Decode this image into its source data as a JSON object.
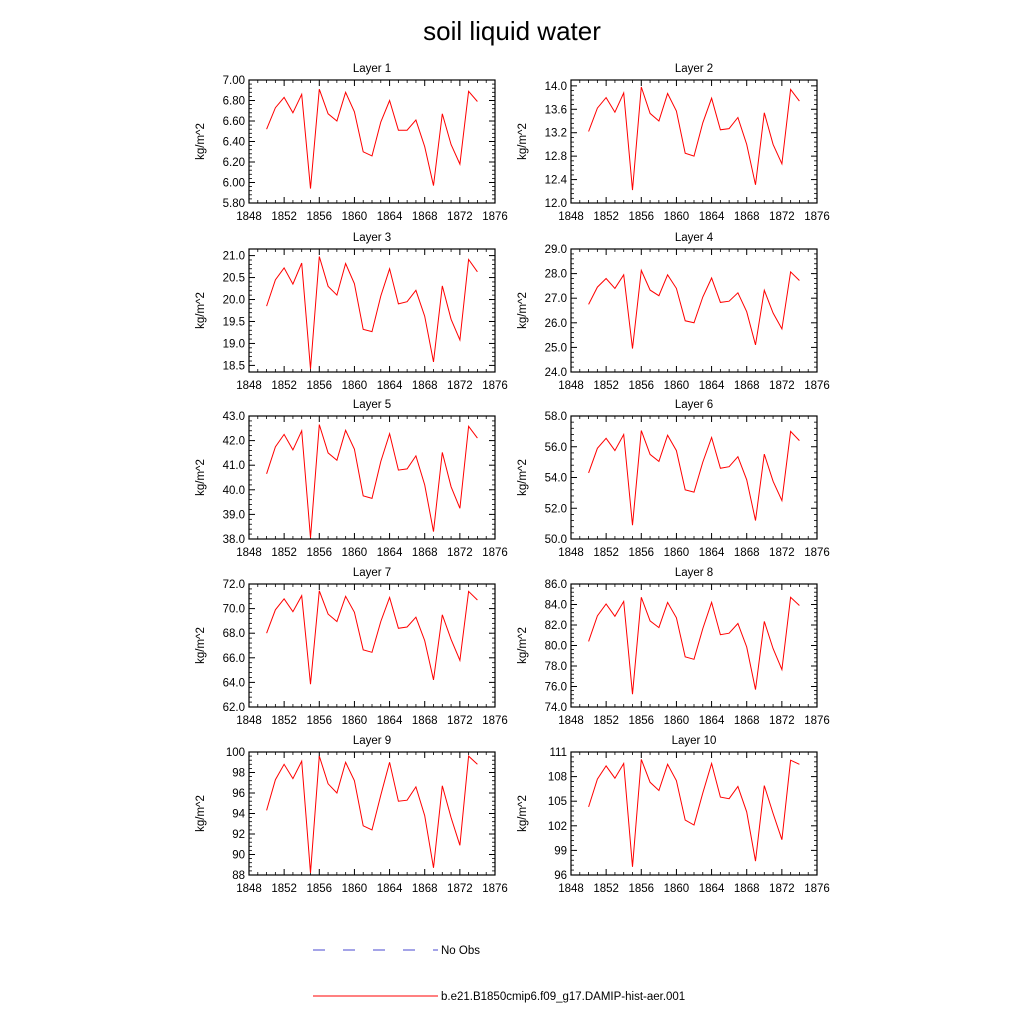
{
  "title": "soil liquid water",
  "legend": [
    {
      "label": "No Obs",
      "color": "#4a4ad0",
      "style": "dashed"
    },
    {
      "label": "b.e21.B1850cmip6.f09_g17.DAMIP-hist-aer.001",
      "color": "#ff0000",
      "style": "solid"
    }
  ],
  "chart_data": [
    {
      "type": "line",
      "title": "Layer 1",
      "xlabel": "",
      "ylabel": "kg/m^2",
      "xlim": [
        1848,
        1876
      ],
      "ylim": [
        5.8,
        7.0
      ],
      "xticks": [
        1848,
        1852,
        1856,
        1860,
        1864,
        1868,
        1872,
        1876
      ],
      "xtick_labels": [
        "1848",
        "1852",
        "1856",
        "1860",
        "1864",
        "1868",
        "1872",
        "1876"
      ],
      "yticks": [
        5.8,
        6.0,
        6.2,
        6.4,
        6.6,
        6.8,
        7.0
      ],
      "ytick_labels": [
        "5.80",
        "6.00",
        "6.20",
        "6.40",
        "6.60",
        "6.80",
        "7.00"
      ],
      "series": [
        {
          "color": "#ff0000",
          "x": [
            1850,
            1851,
            1852,
            1853,
            1854,
            1855,
            1856,
            1857,
            1858,
            1859,
            1860,
            1861,
            1862,
            1863,
            1864,
            1865,
            1866,
            1867,
            1868,
            1869,
            1870,
            1871,
            1872,
            1873,
            1874
          ],
          "values": [
            6.52,
            6.73,
            6.83,
            6.68,
            6.86,
            5.94,
            6.91,
            6.67,
            6.6,
            6.88,
            6.69,
            6.3,
            6.26,
            6.59,
            6.8,
            6.51,
            6.51,
            6.61,
            6.35,
            5.97,
            6.67,
            6.37,
            6.18,
            6.89,
            6.79
          ]
        }
      ]
    },
    {
      "type": "line",
      "title": "Layer 2",
      "xlabel": "",
      "ylabel": "kg/m^2",
      "xlim": [
        1848,
        1876
      ],
      "ylim": [
        12.0,
        14.1
      ],
      "xticks": [
        1848,
        1852,
        1856,
        1860,
        1864,
        1868,
        1872,
        1876
      ],
      "xtick_labels": [
        "1848",
        "1852",
        "1856",
        "1860",
        "1864",
        "1868",
        "1872",
        "1876"
      ],
      "yticks": [
        12.0,
        12.4,
        12.8,
        13.2,
        13.6,
        14.0
      ],
      "ytick_labels": [
        "12.0",
        "12.4",
        "12.8",
        "13.2",
        "13.6",
        "14.0"
      ],
      "series": [
        {
          "color": "#ff0000",
          "x": [
            1850,
            1851,
            1852,
            1853,
            1854,
            1855,
            1856,
            1857,
            1858,
            1859,
            1860,
            1861,
            1862,
            1863,
            1864,
            1865,
            1866,
            1867,
            1868,
            1869,
            1870,
            1871,
            1872,
            1873,
            1874
          ],
          "values": [
            13.22,
            13.62,
            13.8,
            13.55,
            13.88,
            12.22,
            13.98,
            13.53,
            13.4,
            13.87,
            13.57,
            12.85,
            12.8,
            13.37,
            13.79,
            13.25,
            13.27,
            13.46,
            13.0,
            12.31,
            13.54,
            13.0,
            12.67,
            13.94,
            13.74
          ]
        }
      ]
    },
    {
      "type": "line",
      "title": "Layer 3",
      "xlabel": "",
      "ylabel": "kg/m^2",
      "xlim": [
        1848,
        1876
      ],
      "ylim": [
        18.35,
        21.15
      ],
      "xticks": [
        1848,
        1852,
        1856,
        1860,
        1864,
        1868,
        1872,
        1876
      ],
      "xtick_labels": [
        "1848",
        "1852",
        "1856",
        "1860",
        "1864",
        "1868",
        "1872",
        "1876"
      ],
      "yticks": [
        18.5,
        19.0,
        19.5,
        20.0,
        20.5,
        21.0
      ],
      "ytick_labels": [
        "18.5",
        "19.0",
        "19.5",
        "20.0",
        "20.5",
        "21.0"
      ],
      "series": [
        {
          "color": "#ff0000",
          "x": [
            1850,
            1851,
            1852,
            1853,
            1854,
            1855,
            1856,
            1857,
            1858,
            1859,
            1860,
            1861,
            1862,
            1863,
            1864,
            1865,
            1866,
            1867,
            1868,
            1869,
            1870,
            1871,
            1872,
            1873,
            1874
          ],
          "values": [
            19.85,
            20.45,
            20.72,
            20.35,
            20.83,
            18.42,
            20.98,
            20.3,
            20.1,
            20.82,
            20.36,
            19.32,
            19.27,
            20.08,
            20.7,
            19.9,
            19.95,
            20.21,
            19.62,
            18.58,
            20.31,
            19.55,
            19.08,
            20.91,
            20.63
          ]
        }
      ]
    },
    {
      "type": "line",
      "title": "Layer 4",
      "xlabel": "",
      "ylabel": "kg/m^2",
      "xlim": [
        1848,
        1876
      ],
      "ylim": [
        24.0,
        29.0
      ],
      "xticks": [
        1848,
        1852,
        1856,
        1860,
        1864,
        1868,
        1872,
        1876
      ],
      "xtick_labels": [
        "1848",
        "1852",
        "1856",
        "1860",
        "1864",
        "1868",
        "1872",
        "1876"
      ],
      "yticks": [
        24.0,
        25.0,
        26.0,
        27.0,
        28.0,
        29.0
      ],
      "ytick_labels": [
        "24.0",
        "25.0",
        "26.0",
        "27.0",
        "28.0",
        "29.0"
      ],
      "series": [
        {
          "color": "#ff0000",
          "x": [
            1850,
            1851,
            1852,
            1853,
            1854,
            1855,
            1856,
            1857,
            1858,
            1859,
            1860,
            1861,
            1862,
            1863,
            1864,
            1865,
            1866,
            1867,
            1868,
            1869,
            1870,
            1871,
            1872,
            1873,
            1874
          ],
          "values": [
            26.75,
            27.45,
            27.8,
            27.4,
            27.95,
            24.95,
            28.13,
            27.33,
            27.1,
            27.95,
            27.4,
            26.08,
            26.0,
            27.05,
            27.82,
            26.83,
            26.88,
            27.22,
            26.45,
            25.1,
            27.32,
            26.4,
            25.75,
            28.07,
            27.72
          ]
        }
      ]
    },
    {
      "type": "line",
      "title": "Layer 5",
      "xlabel": "",
      "ylabel": "kg/m^2",
      "xlim": [
        1848,
        1876
      ],
      "ylim": [
        38.0,
        43.0
      ],
      "xticks": [
        1848,
        1852,
        1856,
        1860,
        1864,
        1868,
        1872,
        1876
      ],
      "xtick_labels": [
        "1848",
        "1852",
        "1856",
        "1860",
        "1864",
        "1868",
        "1872",
        "1876"
      ],
      "yticks": [
        38.0,
        39.0,
        40.0,
        41.0,
        42.0,
        43.0
      ],
      "ytick_labels": [
        "38.0",
        "39.0",
        "40.0",
        "41.0",
        "42.0",
        "43.0"
      ],
      "series": [
        {
          "color": "#ff0000",
          "x": [
            1850,
            1851,
            1852,
            1853,
            1854,
            1855,
            1856,
            1857,
            1858,
            1859,
            1860,
            1861,
            1862,
            1863,
            1864,
            1865,
            1866,
            1867,
            1868,
            1869,
            1870,
            1871,
            1872,
            1873,
            1874
          ],
          "values": [
            40.65,
            41.75,
            42.25,
            41.62,
            42.4,
            38.05,
            42.65,
            41.5,
            41.2,
            42.42,
            41.65,
            39.75,
            39.65,
            41.15,
            42.28,
            40.8,
            40.85,
            41.38,
            40.2,
            38.3,
            41.52,
            40.12,
            39.25,
            42.58,
            42.1
          ]
        }
      ]
    },
    {
      "type": "line",
      "title": "Layer 6",
      "xlabel": "",
      "ylabel": "kg/m^2",
      "xlim": [
        1848,
        1876
      ],
      "ylim": [
        50.0,
        58.0
      ],
      "xticks": [
        1848,
        1852,
        1856,
        1860,
        1864,
        1868,
        1872,
        1876
      ],
      "xtick_labels": [
        "1848",
        "1852",
        "1856",
        "1860",
        "1864",
        "1868",
        "1872",
        "1876"
      ],
      "yticks": [
        50.0,
        52.0,
        54.0,
        56.0,
        58.0
      ],
      "ytick_labels": [
        "50.0",
        "52.0",
        "54.0",
        "56.0",
        "58.0"
      ],
      "series": [
        {
          "color": "#ff0000",
          "x": [
            1850,
            1851,
            1852,
            1853,
            1854,
            1855,
            1856,
            1857,
            1858,
            1859,
            1860,
            1861,
            1862,
            1863,
            1864,
            1865,
            1866,
            1867,
            1868,
            1869,
            1870,
            1871,
            1872,
            1873,
            1874
          ],
          "values": [
            54.3,
            55.9,
            56.55,
            55.75,
            56.8,
            50.9,
            57.05,
            55.5,
            55.05,
            56.75,
            55.75,
            53.2,
            53.05,
            55.0,
            56.6,
            54.6,
            54.7,
            55.35,
            53.85,
            51.2,
            55.52,
            53.75,
            52.5,
            57.0,
            56.4
          ]
        }
      ]
    },
    {
      "type": "line",
      "title": "Layer 7",
      "xlabel": "",
      "ylabel": "kg/m^2",
      "xlim": [
        1848,
        1876
      ],
      "ylim": [
        62.0,
        72.0
      ],
      "xticks": [
        1848,
        1852,
        1856,
        1860,
        1864,
        1868,
        1872,
        1876
      ],
      "xtick_labels": [
        "1848",
        "1852",
        "1856",
        "1860",
        "1864",
        "1868",
        "1872",
        "1876"
      ],
      "yticks": [
        62.0,
        64.0,
        66.0,
        68.0,
        70.0,
        72.0
      ],
      "ytick_labels": [
        "62.0",
        "64.0",
        "66.0",
        "68.0",
        "70.0",
        "72.0"
      ],
      "series": [
        {
          "color": "#ff0000",
          "x": [
            1850,
            1851,
            1852,
            1853,
            1854,
            1855,
            1856,
            1857,
            1858,
            1859,
            1860,
            1861,
            1862,
            1863,
            1864,
            1865,
            1866,
            1867,
            1868,
            1869,
            1870,
            1871,
            1872,
            1873,
            1874
          ],
          "values": [
            68.0,
            69.9,
            70.8,
            69.75,
            71.05,
            63.85,
            71.45,
            69.55,
            68.95,
            71.0,
            69.7,
            66.65,
            66.45,
            68.95,
            70.9,
            68.4,
            68.5,
            69.3,
            67.4,
            64.2,
            69.5,
            67.5,
            65.8,
            71.4,
            70.7
          ]
        }
      ]
    },
    {
      "type": "line",
      "title": "Layer 8",
      "xlabel": "",
      "ylabel": "kg/m^2",
      "xlim": [
        1848,
        1876
      ],
      "ylim": [
        74.0,
        86.0
      ],
      "xticks": [
        1848,
        1852,
        1856,
        1860,
        1864,
        1868,
        1872,
        1876
      ],
      "xtick_labels": [
        "1848",
        "1852",
        "1856",
        "1860",
        "1864",
        "1868",
        "1872",
        "1876"
      ],
      "yticks": [
        74.0,
        76.0,
        78.0,
        80.0,
        82.0,
        84.0,
        86.0
      ],
      "ytick_labels": [
        "74.0",
        "76.0",
        "78.0",
        "80.0",
        "82.0",
        "84.0",
        "86.0"
      ],
      "series": [
        {
          "color": "#ff0000",
          "x": [
            1850,
            1851,
            1852,
            1853,
            1854,
            1855,
            1856,
            1857,
            1858,
            1859,
            1860,
            1861,
            1862,
            1863,
            1864,
            1865,
            1866,
            1867,
            1868,
            1869,
            1870,
            1871,
            1872,
            1873,
            1874
          ],
          "values": [
            80.4,
            82.9,
            84.05,
            82.85,
            84.3,
            75.25,
            84.7,
            82.4,
            81.75,
            84.2,
            82.7,
            78.9,
            78.65,
            81.65,
            84.2,
            81.05,
            81.2,
            82.15,
            79.85,
            75.7,
            82.35,
            79.7,
            77.65,
            84.7,
            83.9
          ]
        }
      ]
    },
    {
      "type": "line",
      "title": "Layer 9",
      "xlabel": "",
      "ylabel": "kg/m^2",
      "xlim": [
        1848,
        1876
      ],
      "ylim": [
        88,
        100
      ],
      "xticks": [
        1848,
        1852,
        1856,
        1860,
        1864,
        1868,
        1872,
        1876
      ],
      "xtick_labels": [
        "1848",
        "1852",
        "1856",
        "1860",
        "1864",
        "1868",
        "1872",
        "1876"
      ],
      "yticks": [
        88,
        90,
        92,
        94,
        96,
        98,
        100
      ],
      "ytick_labels": [
        "88",
        "90",
        "92",
        "94",
        "96",
        "98",
        "100"
      ],
      "series": [
        {
          "color": "#ff0000",
          "x": [
            1850,
            1851,
            1852,
            1853,
            1854,
            1855,
            1856,
            1857,
            1858,
            1859,
            1860,
            1861,
            1862,
            1863,
            1864,
            1865,
            1866,
            1867,
            1868,
            1869,
            1870,
            1871,
            1872,
            1873,
            1874
          ],
          "values": [
            94.3,
            97.3,
            98.8,
            97.4,
            99.1,
            88.2,
            99.6,
            96.9,
            96.0,
            99.0,
            97.2,
            92.8,
            92.4,
            95.8,
            99.0,
            95.2,
            95.3,
            96.6,
            93.8,
            88.7,
            96.7,
            93.6,
            90.9,
            99.6,
            98.8
          ]
        }
      ]
    },
    {
      "type": "line",
      "title": "Layer 10",
      "xlabel": "",
      "ylabel": "kg/m^2",
      "xlim": [
        1848,
        1876
      ],
      "ylim": [
        96,
        111
      ],
      "xticks": [
        1848,
        1852,
        1856,
        1860,
        1864,
        1868,
        1872,
        1876
      ],
      "xtick_labels": [
        "1848",
        "1852",
        "1856",
        "1860",
        "1864",
        "1868",
        "1872",
        "1876"
      ],
      "yticks": [
        96,
        99,
        102,
        105,
        108,
        111
      ],
      "ytick_labels": [
        "96",
        "99",
        "102",
        "105",
        "108",
        "111"
      ],
      "series": [
        {
          "color": "#ff0000",
          "x": [
            1850,
            1851,
            1852,
            1853,
            1854,
            1855,
            1856,
            1857,
            1858,
            1859,
            1860,
            1861,
            1862,
            1863,
            1864,
            1865,
            1866,
            1867,
            1868,
            1869,
            1870,
            1871,
            1872,
            1873,
            1874
          ],
          "values": [
            104.3,
            107.7,
            109.3,
            107.8,
            109.6,
            97.0,
            110.1,
            107.3,
            106.3,
            109.5,
            107.5,
            102.7,
            102.1,
            106.0,
            109.6,
            105.5,
            105.3,
            106.8,
            103.7,
            97.7,
            106.9,
            103.5,
            100.3,
            110.0,
            109.5
          ]
        }
      ]
    }
  ]
}
